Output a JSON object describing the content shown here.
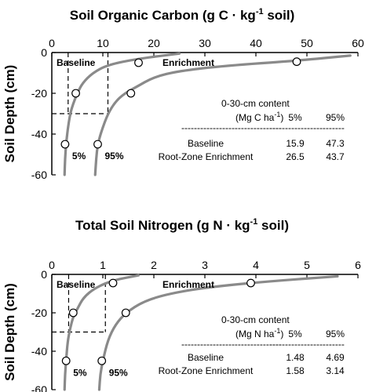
{
  "chart_data": [
    {
      "type": "line",
      "title_main": "Soil Organic Carbon (g C",
      "title_sup": "-1",
      "title_mid": "kg",
      "title_end": " soil)",
      "ylabel": "Soil Depth (cm)",
      "xlim": [
        0,
        60
      ],
      "ylim": [
        -60,
        0
      ],
      "xticks": [
        "0",
        "10",
        "20",
        "30",
        "40",
        "50",
        "60"
      ],
      "yticks": [
        "0",
        "-20",
        "-40",
        "-60"
      ],
      "series": [
        {
          "label": "5%",
          "curve": [
            [
              25,
              -0.5
            ],
            [
              17,
              -3
            ],
            [
              11,
              -6
            ],
            [
              8,
              -10
            ],
            [
              6,
              -15
            ],
            [
              5,
              -20
            ],
            [
              4.2,
              -25
            ],
            [
              3.6,
              -30
            ],
            [
              3.1,
              -38
            ],
            [
              2.8,
              -45
            ],
            [
              2.6,
              -52
            ],
            [
              2.5,
              -60
            ]
          ],
          "points": [
            [
              4.7,
              -20
            ],
            [
              2.6,
              -45
            ]
          ]
        },
        {
          "label": "95%",
          "curve": [
            [
              58.5,
              -1.5
            ],
            [
              48,
              -4
            ],
            [
              34,
              -6.5
            ],
            [
              25,
              -9
            ],
            [
              20,
              -12
            ],
            [
              16.5,
              -17
            ],
            [
              14.3,
              -20
            ],
            [
              12.5,
              -24
            ],
            [
              11,
              -30
            ],
            [
              9.8,
              -38
            ],
            [
              9,
              -45
            ],
            [
              8.7,
              -52
            ],
            [
              8.5,
              -60
            ]
          ],
          "points": [
            [
              17,
              -5
            ],
            [
              48,
              -4.5
            ],
            [
              15.5,
              -20
            ],
            [
              9,
              -45
            ]
          ]
        }
      ],
      "baseline_label": "Baseline",
      "enrichment_label": "Enrichment",
      "dashed_box": {
        "x": [
          3.2,
          11
        ],
        "y": [
          -30,
          0
        ]
      },
      "table": {
        "head1": "0-30-cm content",
        "head2_pre": "(Mg C ha",
        "head2_sup": "-1",
        "head2_post": ")",
        "col1": "5%",
        "col2": "95%",
        "dash_left": "--------------------------------",
        "dash_right": "------------------------",
        "rows": [
          {
            "name": "Baseline",
            "v1": "15.9",
            "v2": "47.3"
          },
          {
            "name": "Root-Zone Enrichment",
            "v1": "26.5",
            "v2": "43.7"
          }
        ]
      }
    },
    {
      "type": "line",
      "title_main": "Total Soil Nitrogen (g N",
      "title_sup": "-1",
      "title_mid": "kg",
      "title_end": " soil)",
      "ylabel": "Soil Depth (cm)",
      "xlim": [
        0,
        6
      ],
      "ylim": [
        -60,
        0
      ],
      "xticks": [
        "0",
        "1",
        "2",
        "3",
        "4",
        "5",
        "6"
      ],
      "yticks": [
        "0",
        "-20",
        "-40",
        "-60"
      ],
      "series": [
        {
          "label": "5%",
          "curve": [
            [
              1.7,
              -0.5
            ],
            [
              1.2,
              -3
            ],
            [
              0.85,
              -7
            ],
            [
              0.62,
              -12
            ],
            [
              0.5,
              -18
            ],
            [
              0.42,
              -22
            ],
            [
              0.36,
              -28
            ],
            [
              0.31,
              -35
            ],
            [
              0.28,
              -45
            ],
            [
              0.26,
              -52
            ],
            [
              0.25,
              -60
            ]
          ],
          "points": [
            [
              1.2,
              -4.5
            ],
            [
              0.42,
              -20
            ],
            [
              0.28,
              -45
            ]
          ]
        },
        {
          "label": "95%",
          "curve": [
            [
              5.6,
              -1
            ],
            [
              4.3,
              -3.5
            ],
            [
              3.1,
              -6.5
            ],
            [
              2.3,
              -10
            ],
            [
              1.8,
              -14
            ],
            [
              1.45,
              -20
            ],
            [
              1.25,
              -26
            ],
            [
              1.1,
              -34
            ],
            [
              1.0,
              -45
            ],
            [
              0.95,
              -52
            ],
            [
              0.93,
              -60
            ]
          ],
          "points": [
            [
              3.9,
              -4.5
            ],
            [
              1.45,
              -20
            ],
            [
              0.98,
              -45
            ]
          ]
        }
      ],
      "baseline_label": "Baseline",
      "enrichment_label": "Enrichment",
      "dashed_box": {
        "x": [
          0.33,
          1.05
        ],
        "y": [
          -30,
          0
        ]
      },
      "table": {
        "head1": "0-30-cm content",
        "head2_pre": "(Mg N ha",
        "head2_sup": "-1",
        "head2_post": ")",
        "col1": "5%",
        "col2": "95%",
        "dash_left": "--------------------------------",
        "dash_right": "------------------------",
        "rows": [
          {
            "name": "Baseline",
            "v1": "1.48",
            "v2": "4.69"
          },
          {
            "name": "Root-Zone Enrichment",
            "v1": "1.58",
            "v2": "3.14"
          }
        ]
      }
    }
  ]
}
